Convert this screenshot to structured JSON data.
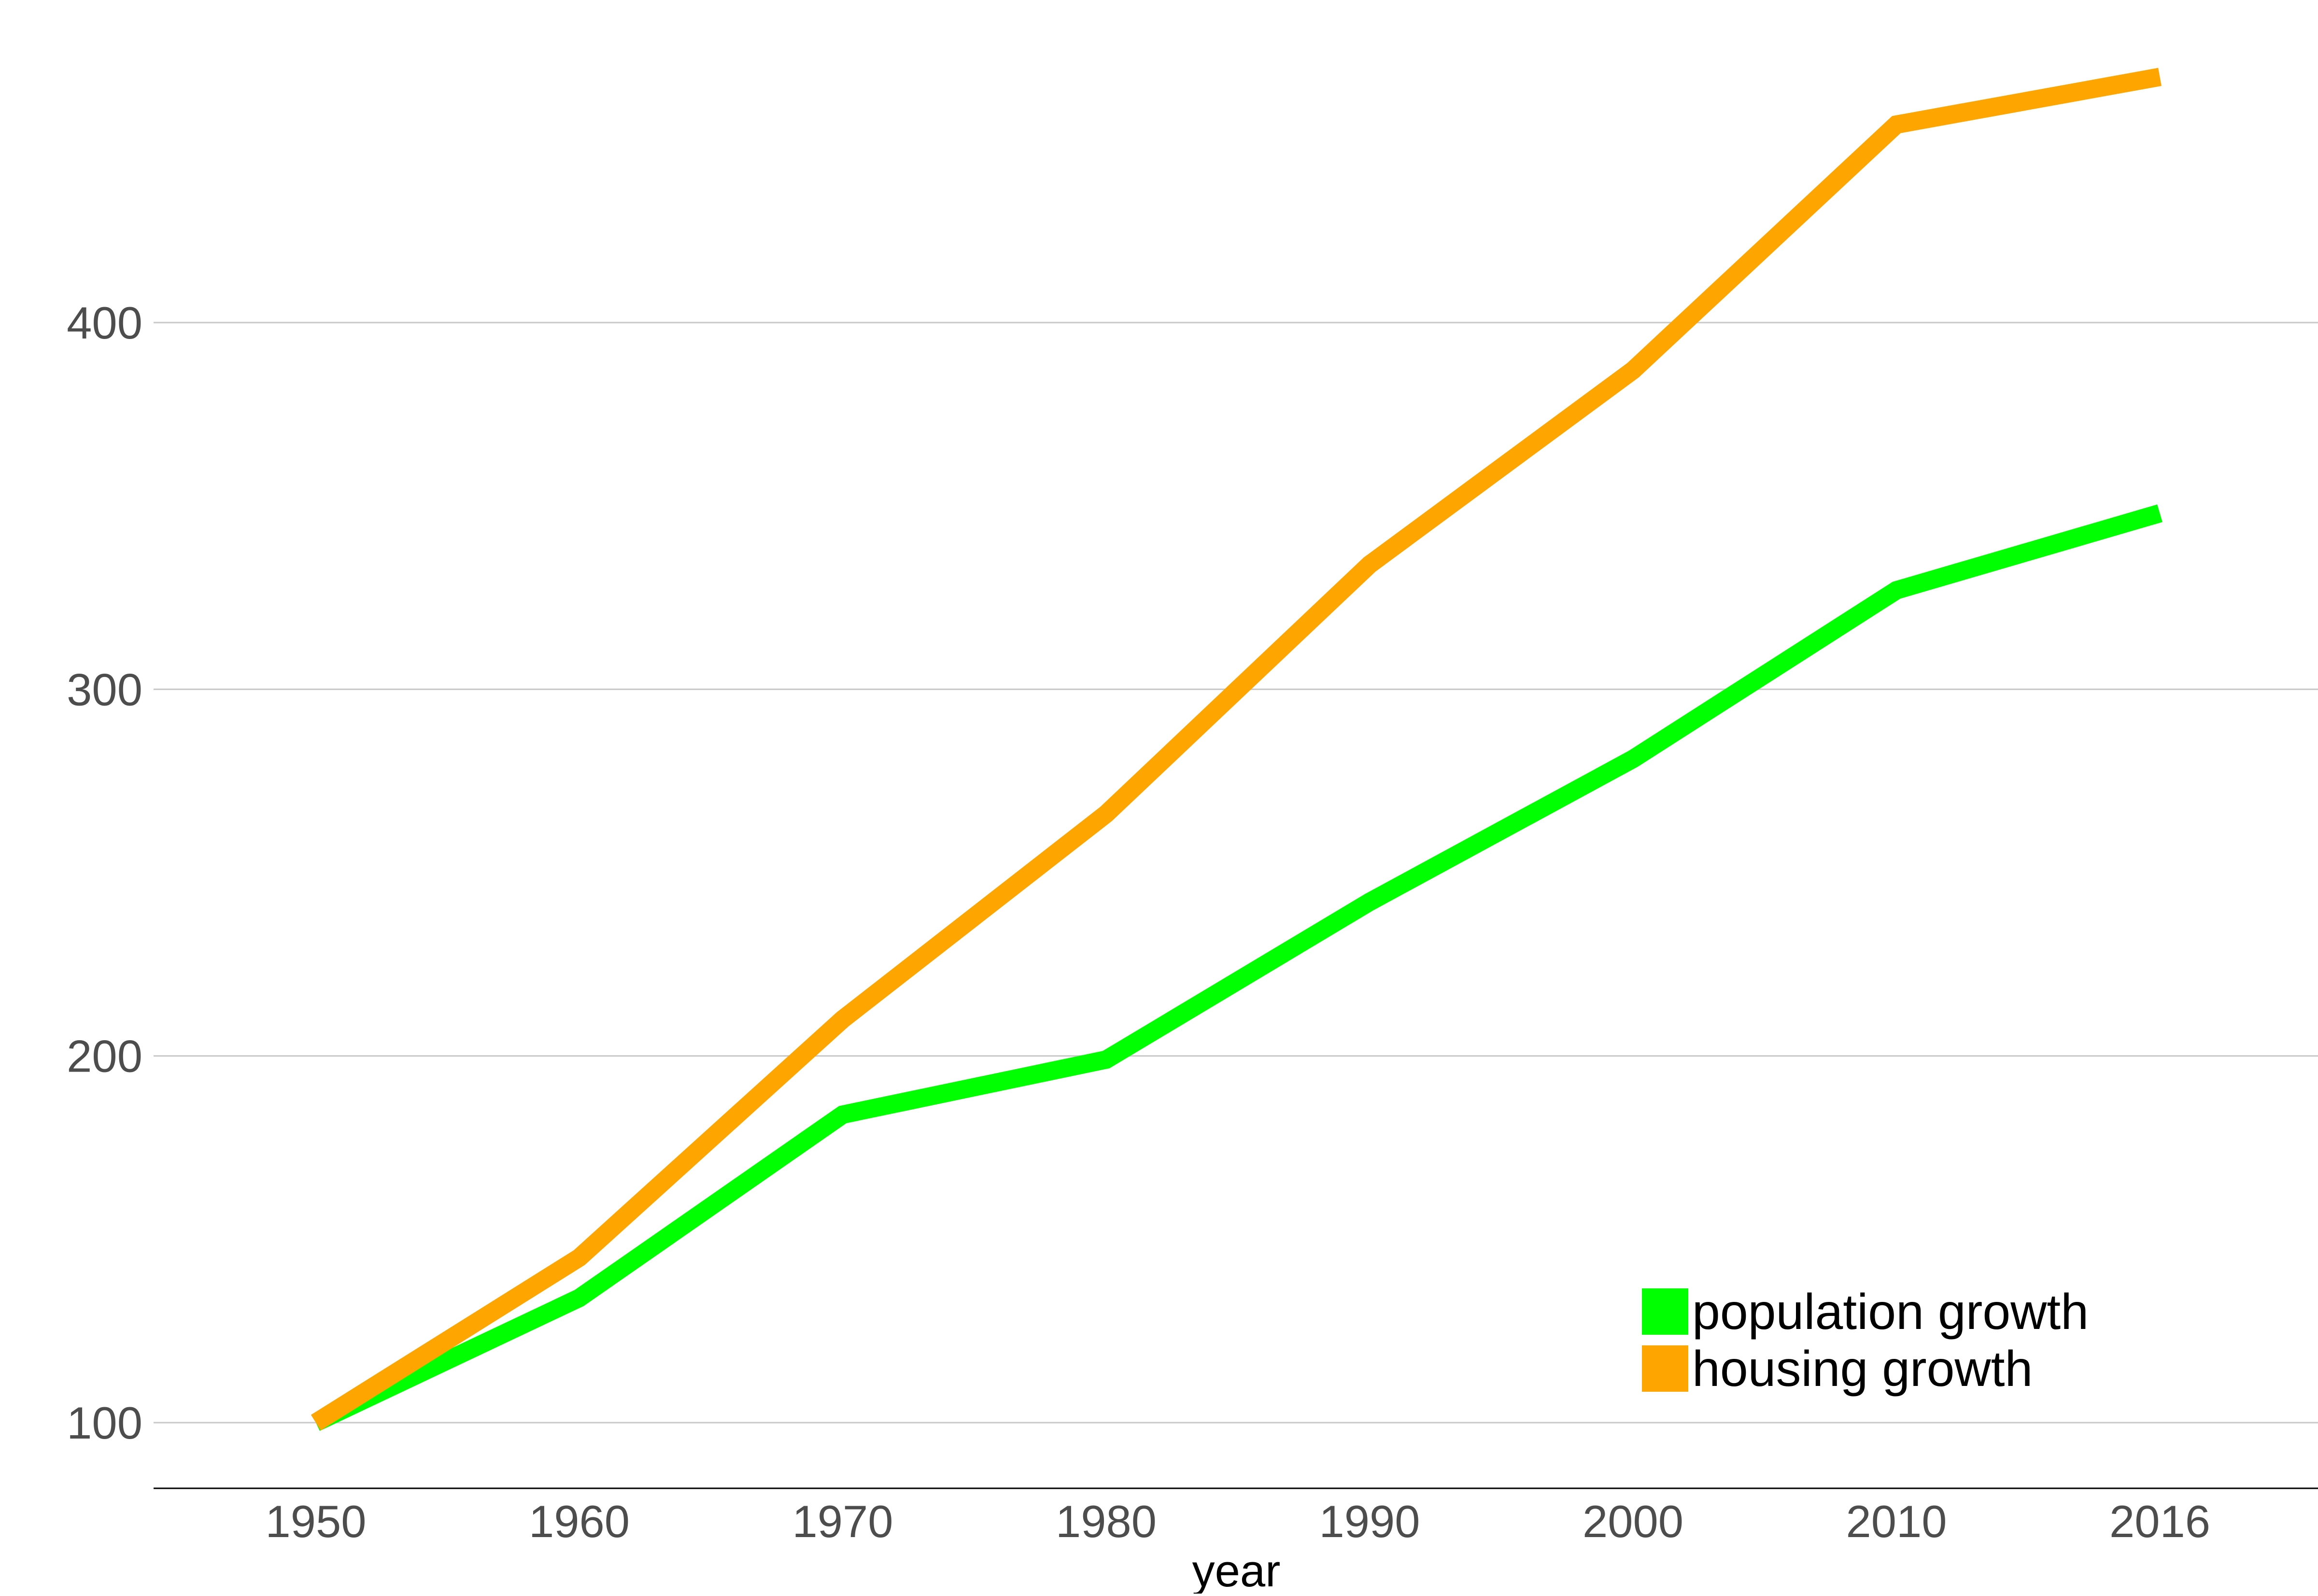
{
  "chart_data": {
    "type": "line",
    "title": "",
    "xlabel": "year",
    "ylabel": "",
    "x": [
      1950,
      1960,
      1970,
      1980,
      1990,
      2000,
      2010,
      2016
    ],
    "x_tick_labels": [
      "1950",
      "1960",
      "1970",
      "1980",
      "1990",
      "2000",
      "2010",
      "2016"
    ],
    "y_ticks": [
      100,
      200,
      300,
      400
    ],
    "y_tick_labels": [
      "100",
      "200",
      "300",
      "400"
    ],
    "ylim": [
      82,
      499
    ],
    "grid": true,
    "legend_position": "bottom-right",
    "series": [
      {
        "name": "population growth",
        "color": "#00ff00",
        "values": [
          100,
          134,
          184,
          199,
          242,
          281,
          327,
          348
        ]
      },
      {
        "name": "housing growth",
        "color": "#ffa500",
        "values": [
          100,
          145,
          210,
          266,
          334,
          387,
          454,
          467
        ]
      }
    ]
  }
}
